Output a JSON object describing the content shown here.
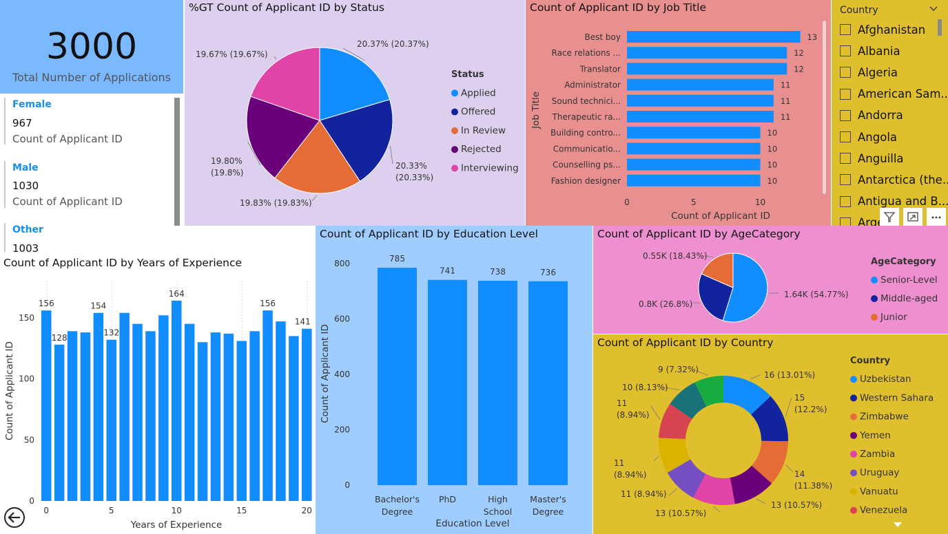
{
  "kpi": {
    "value": "3000",
    "label": "Total Number of Applications"
  },
  "gender_cards": [
    {
      "head": "Female",
      "value": "967",
      "label": "Count of Applicant ID"
    },
    {
      "head": "Male",
      "value": "1030",
      "label": "Count of Applicant ID"
    },
    {
      "head": "Other",
      "value": "1003",
      "label": ""
    }
  ],
  "colors": {
    "kpi_bg": "#7ab8ff",
    "status_bg": "#dcd0ee",
    "jobtitle_bg": "#e8908f",
    "slicer_bg": "#e0bf2e",
    "education_bg": "#9fcdff",
    "age_bg": "#ee8fcf",
    "country_bg": "#e0bf2e",
    "bar": "#118dff"
  },
  "slicer": {
    "title": "Country",
    "items": [
      "Afghanistan",
      "Albania",
      "Algeria",
      "American Sam...",
      "Andorra",
      "Angola",
      "Anguilla",
      "Antarctica (the...",
      "Antigua and B...",
      "Arge..."
    ]
  },
  "visual_buttons": [
    "filter-icon",
    "focus-mode-icon",
    "more-options-icon"
  ],
  "nav": {
    "back_icon": "back-arrow-icon"
  },
  "charts": {
    "status": {
      "type": "pie",
      "title": "%GT Count of Applicant ID by Status",
      "legend_title": "Status",
      "legend_position": "right",
      "slices": [
        {
          "name": "Applied",
          "pct": 20.37,
          "label": "20.37% (20.37%)",
          "color": "#118dff"
        },
        {
          "name": "Offered",
          "pct": 20.33,
          "label": "20.33% (20.33%)",
          "color": "#12239e"
        },
        {
          "name": "In Review",
          "pct": 19.83,
          "label": "19.83% (19.83%)",
          "color": "#e66c37"
        },
        {
          "name": "Rejected",
          "pct": 19.8,
          "label": "19.80% (19.8%)",
          "color": "#6b007b"
        },
        {
          "name": "Interviewing",
          "pct": 19.67,
          "label": "19.67% (19.67%)",
          "color": "#e044a7"
        }
      ]
    },
    "job_title": {
      "type": "bar",
      "orientation": "horizontal",
      "title": "Count of Applicant ID by Job Title",
      "xlabel": "Count of Applicant ID",
      "ylabel": "Job Title",
      "xlim": [
        0,
        13
      ],
      "xticks": [
        0,
        5,
        10
      ],
      "categories": [
        "Best boy",
        "Race relations ...",
        "Translator",
        "Administrator",
        "Sound technici...",
        "Therapeutic ra...",
        "Building contro...",
        "Communicatio...",
        "Counselling ps...",
        "Fashion designer"
      ],
      "values": [
        13,
        12,
        12,
        11,
        11,
        11,
        10,
        10,
        10,
        10
      ]
    },
    "experience": {
      "type": "bar",
      "title": "Count of Applicant ID by Years of Experience",
      "xlabel": "Years of Experience",
      "ylabel": "Count of Applicant ID",
      "ylim": [
        0,
        180
      ],
      "yticks": [
        0,
        50,
        100,
        150
      ],
      "xticks": [
        0,
        5,
        10,
        15,
        20
      ],
      "grid": true,
      "x": [
        0,
        1,
        2,
        3,
        4,
        5,
        6,
        7,
        8,
        9,
        10,
        11,
        12,
        13,
        14,
        15,
        16,
        17,
        18,
        19,
        20
      ],
      "values": [
        156,
        128,
        139,
        138,
        154,
        132,
        154,
        145,
        139,
        152,
        164,
        145,
        130,
        138,
        137,
        131,
        139,
        156,
        147,
        135,
        141
      ],
      "data_labels": {
        "0": "156",
        "1": "128",
        "4": "154",
        "5": "132",
        "10": "164",
        "17": "156",
        "20": "141"
      }
    },
    "education": {
      "type": "bar",
      "title": "Count of Applicant ID by Education Level",
      "xlabel": "Education Level",
      "ylabel": "Count of Applicant ID",
      "ylim": [
        0,
        800
      ],
      "yticks": [
        0,
        200,
        400,
        600,
        800
      ],
      "categories": [
        [
          "Bachelor's",
          "Degree"
        ],
        [
          "PhD"
        ],
        [
          "High",
          "School"
        ],
        [
          "Master's",
          "Degree"
        ]
      ],
      "values": [
        785,
        741,
        738,
        736
      ]
    },
    "age": {
      "type": "pie",
      "title": "Count of Applicant ID by AgeCategory",
      "legend_title": "AgeCategory",
      "legend_position": "right",
      "slices": [
        {
          "name": "Senior-Level",
          "pct": 54.77,
          "label": "1.64K (54.77%)",
          "color": "#118dff"
        },
        {
          "name": "Middle-aged",
          "pct": 26.8,
          "label": "0.8K (26.8%)",
          "color": "#12239e"
        },
        {
          "name": "Junior",
          "pct": 18.43,
          "label": "0.55K (18.43%)",
          "color": "#e66c37"
        }
      ]
    },
    "country": {
      "type": "donut",
      "title": "Count of Applicant ID by Country",
      "legend_title": "Country",
      "legend_position": "right",
      "slices": [
        {
          "name": "Uzbekistan",
          "value": 16,
          "label": "16 (13.01%)",
          "color": "#118dff"
        },
        {
          "name": "Western Sahara",
          "value": 15,
          "label": "15 (12.2%)",
          "color": "#12239e"
        },
        {
          "name": "Zimbabwe",
          "value": 14,
          "label": "14 (11.38%)",
          "color": "#e66c37"
        },
        {
          "name": "Yemen",
          "value": 13,
          "label": "13 (10.57%)",
          "color": "#6b007b"
        },
        {
          "name": "Zambia",
          "value": 13,
          "label": "13 (10.57%)",
          "color": "#e044a7"
        },
        {
          "name": "Uruguay",
          "value": 11,
          "label": "11 (8.94%)",
          "color": "#744ec2"
        },
        {
          "name": "Vanuatu",
          "value": 11,
          "label": "11 (8.94%)",
          "color": "#d9b300"
        },
        {
          "name": "Venezuela",
          "value": 11,
          "label": "11 (8.94%)",
          "color": "#d64550"
        },
        {
          "name": "",
          "value": 10,
          "label": "10 (8.13%)",
          "color": "#197278"
        },
        {
          "name": "",
          "value": 9,
          "label": "9 (7.32%)",
          "color": "#1aab40"
        }
      ]
    }
  }
}
